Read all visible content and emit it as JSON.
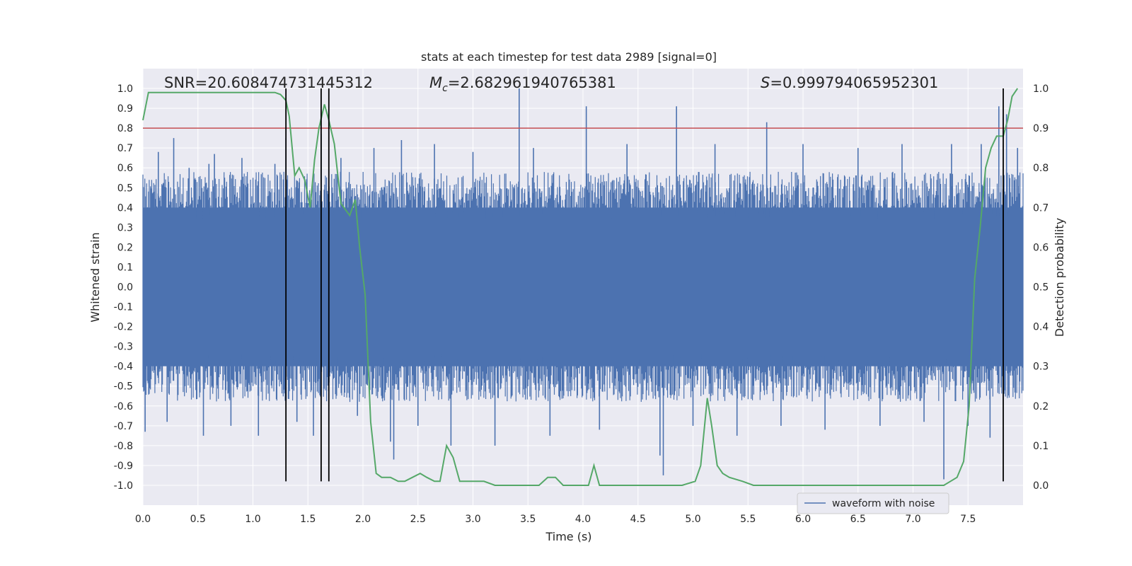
{
  "chart_data": {
    "type": "line",
    "title": "stats at each timestep for test data 2989 [signal=0]",
    "xlabel": "Time (s)",
    "ylabel": "Whitened strain",
    "y2label": "Detection probability",
    "xlim": [
      0.0,
      8.0
    ],
    "ylim": [
      -1.1,
      1.1
    ],
    "y2lim": [
      -0.05,
      1.05
    ],
    "xticks": [
      "0.0",
      "0.5",
      "1.0",
      "1.5",
      "2.0",
      "2.5",
      "3.0",
      "3.5",
      "4.0",
      "4.5",
      "5.0",
      "5.5",
      "6.0",
      "6.5",
      "7.0",
      "7.5"
    ],
    "xtick_values": [
      0.0,
      0.5,
      1.0,
      1.5,
      2.0,
      2.5,
      3.0,
      3.5,
      4.0,
      4.5,
      5.0,
      5.5,
      6.0,
      6.5,
      7.0,
      7.5
    ],
    "yticks": [
      "1.0",
      "0.9",
      "0.8",
      "0.7",
      "0.6",
      "0.5",
      "0.4",
      "0.3",
      "0.2",
      "0.1",
      "0.0",
      "-0.1",
      "-0.2",
      "-0.3",
      "-0.4",
      "-0.5",
      "-0.6",
      "-0.7",
      "-0.8",
      "-0.9",
      "-1.0"
    ],
    "ytick_values": [
      1.0,
      0.9,
      0.8,
      0.7,
      0.6,
      0.5,
      0.4,
      0.3,
      0.2,
      0.1,
      0.0,
      -0.1,
      -0.2,
      -0.3,
      -0.4,
      -0.5,
      -0.6,
      -0.7,
      -0.8,
      -0.9,
      -1.0
    ],
    "y2ticks": [
      "1.0",
      "0.9",
      "0.8",
      "0.7",
      "0.6",
      "0.5",
      "0.4",
      "0.3",
      "0.2",
      "0.1",
      "0.0"
    ],
    "y2tick_values": [
      1.0,
      0.9,
      0.8,
      0.7,
      0.6,
      0.5,
      0.4,
      0.3,
      0.2,
      0.1,
      0.0
    ],
    "grid": true,
    "legend": {
      "placement": "bottom-right",
      "entries": [
        "waveform with noise"
      ]
    },
    "annotations": {
      "snr": "SNR=20.608474731445312",
      "mc_symbol": "M",
      "mc_sub": "c",
      "mc_value": "=2.682961940765381",
      "s_symbol": "S",
      "s_value": "=0.999794065952301"
    },
    "threshold": {
      "value": 0.8,
      "color": "#c44e52"
    },
    "vlines": [
      1.3,
      1.62,
      1.69,
      7.82
    ],
    "vline_range": [
      -0.98,
      1.0
    ],
    "waveform": {
      "name": "waveform with noise",
      "color": "#4c72b0",
      "x_range": [
        0.0,
        8.0
      ],
      "core_amplitude": 0.4,
      "spikes": [
        {
          "x": 0.02,
          "y": -0.73
        },
        {
          "x": 0.1,
          "y": 0.48
        },
        {
          "x": 0.14,
          "y": 0.68
        },
        {
          "x": 0.22,
          "y": -0.68
        },
        {
          "x": 0.28,
          "y": 0.75
        },
        {
          "x": 0.42,
          "y": 0.6
        },
        {
          "x": 0.55,
          "y": -0.75
        },
        {
          "x": 0.6,
          "y": 0.62
        },
        {
          "x": 0.65,
          "y": 0.67
        },
        {
          "x": 0.8,
          "y": -0.7
        },
        {
          "x": 0.9,
          "y": 0.65
        },
        {
          "x": 1.05,
          "y": -0.75
        },
        {
          "x": 1.2,
          "y": 0.62
        },
        {
          "x": 1.3,
          "y": 0.75
        },
        {
          "x": 1.4,
          "y": -0.68
        },
        {
          "x": 1.55,
          "y": -0.75
        },
        {
          "x": 1.62,
          "y": 0.77
        },
        {
          "x": 1.8,
          "y": 0.65
        },
        {
          "x": 1.95,
          "y": -0.65
        },
        {
          "x": 2.1,
          "y": 0.7
        },
        {
          "x": 2.25,
          "y": -0.78
        },
        {
          "x": 2.28,
          "y": -0.87
        },
        {
          "x": 2.35,
          "y": 0.74
        },
        {
          "x": 2.5,
          "y": -0.7
        },
        {
          "x": 2.65,
          "y": 0.72
        },
        {
          "x": 2.8,
          "y": -0.8
        },
        {
          "x": 3.0,
          "y": 0.68
        },
        {
          "x": 3.2,
          "y": -0.8
        },
        {
          "x": 3.42,
          "y": 1.0
        },
        {
          "x": 3.55,
          "y": 0.7
        },
        {
          "x": 3.7,
          "y": -0.75
        },
        {
          "x": 4.03,
          "y": 0.91
        },
        {
          "x": 4.15,
          "y": -0.72
        },
        {
          "x": 4.4,
          "y": 0.72
        },
        {
          "x": 4.7,
          "y": -0.85
        },
        {
          "x": 4.73,
          "y": -0.95
        },
        {
          "x": 4.85,
          "y": 0.91
        },
        {
          "x": 5.0,
          "y": -0.7
        },
        {
          "x": 5.2,
          "y": 0.72
        },
        {
          "x": 5.4,
          "y": -0.75
        },
        {
          "x": 5.67,
          "y": 0.83
        },
        {
          "x": 5.8,
          "y": -0.7
        },
        {
          "x": 6.0,
          "y": 0.72
        },
        {
          "x": 6.2,
          "y": -0.72
        },
        {
          "x": 6.5,
          "y": 0.7
        },
        {
          "x": 6.7,
          "y": -0.7
        },
        {
          "x": 6.9,
          "y": 0.72
        },
        {
          "x": 7.1,
          "y": -0.68
        },
        {
          "x": 7.28,
          "y": -0.97
        },
        {
          "x": 7.35,
          "y": 0.72
        },
        {
          "x": 7.5,
          "y": -0.7
        },
        {
          "x": 7.62,
          "y": 0.72
        },
        {
          "x": 7.7,
          "y": -0.76
        },
        {
          "x": 7.78,
          "y": 0.91
        },
        {
          "x": 7.85,
          "y": 0.87
        },
        {
          "x": 7.95,
          "y": 0.7
        }
      ]
    },
    "series": [
      {
        "color": "#55a868",
        "axis": "right",
        "x": [
          0.0,
          0.05,
          0.2,
          0.4,
          0.6,
          0.8,
          1.0,
          1.2,
          1.25,
          1.3,
          1.33,
          1.38,
          1.42,
          1.47,
          1.52,
          1.56,
          1.6,
          1.65,
          1.69,
          1.74,
          1.8,
          1.88,
          1.93,
          1.97,
          2.02,
          2.07,
          2.12,
          2.17,
          2.25,
          2.32,
          2.38,
          2.45,
          2.52,
          2.58,
          2.65,
          2.7,
          2.76,
          2.82,
          2.88,
          2.95,
          3.0,
          3.1,
          3.2,
          3.3,
          3.4,
          3.5,
          3.6,
          3.68,
          3.75,
          3.82,
          3.9,
          3.97,
          4.05,
          4.1,
          4.15,
          4.25,
          4.35,
          4.5,
          4.65,
          4.8,
          4.9,
          5.02,
          5.07,
          5.13,
          5.17,
          5.22,
          5.27,
          5.33,
          5.45,
          5.55,
          5.7,
          6.0,
          6.3,
          6.5,
          6.7,
          6.9,
          7.0,
          7.1,
          7.2,
          7.28,
          7.34,
          7.4,
          7.46,
          7.51,
          7.56,
          7.61,
          7.66,
          7.71,
          7.76,
          7.82,
          7.86,
          7.9,
          7.95
        ],
        "y": [
          0.92,
          0.99,
          0.99,
          0.99,
          0.99,
          0.99,
          0.99,
          0.99,
          0.985,
          0.97,
          0.93,
          0.78,
          0.8,
          0.77,
          0.7,
          0.82,
          0.9,
          0.96,
          0.92,
          0.86,
          0.71,
          0.68,
          0.72,
          0.6,
          0.48,
          0.16,
          0.03,
          0.02,
          0.02,
          0.01,
          0.01,
          0.02,
          0.03,
          0.02,
          0.01,
          0.01,
          0.1,
          0.07,
          0.01,
          0.01,
          0.01,
          0.01,
          0.0,
          0.0,
          0.0,
          0.0,
          0.0,
          0.02,
          0.02,
          0.0,
          0.0,
          0.0,
          0.0,
          0.05,
          0.0,
          0.0,
          0.0,
          0.0,
          0.0,
          0.0,
          0.0,
          0.01,
          0.05,
          0.22,
          0.15,
          0.05,
          0.03,
          0.02,
          0.01,
          0.0,
          0.0,
          0.0,
          0.0,
          0.0,
          0.0,
          0.0,
          0.0,
          0.0,
          0.0,
          0.0,
          0.01,
          0.02,
          0.06,
          0.2,
          0.52,
          0.65,
          0.8,
          0.85,
          0.88,
          0.88,
          0.92,
          0.98,
          1.0
        ]
      }
    ]
  }
}
